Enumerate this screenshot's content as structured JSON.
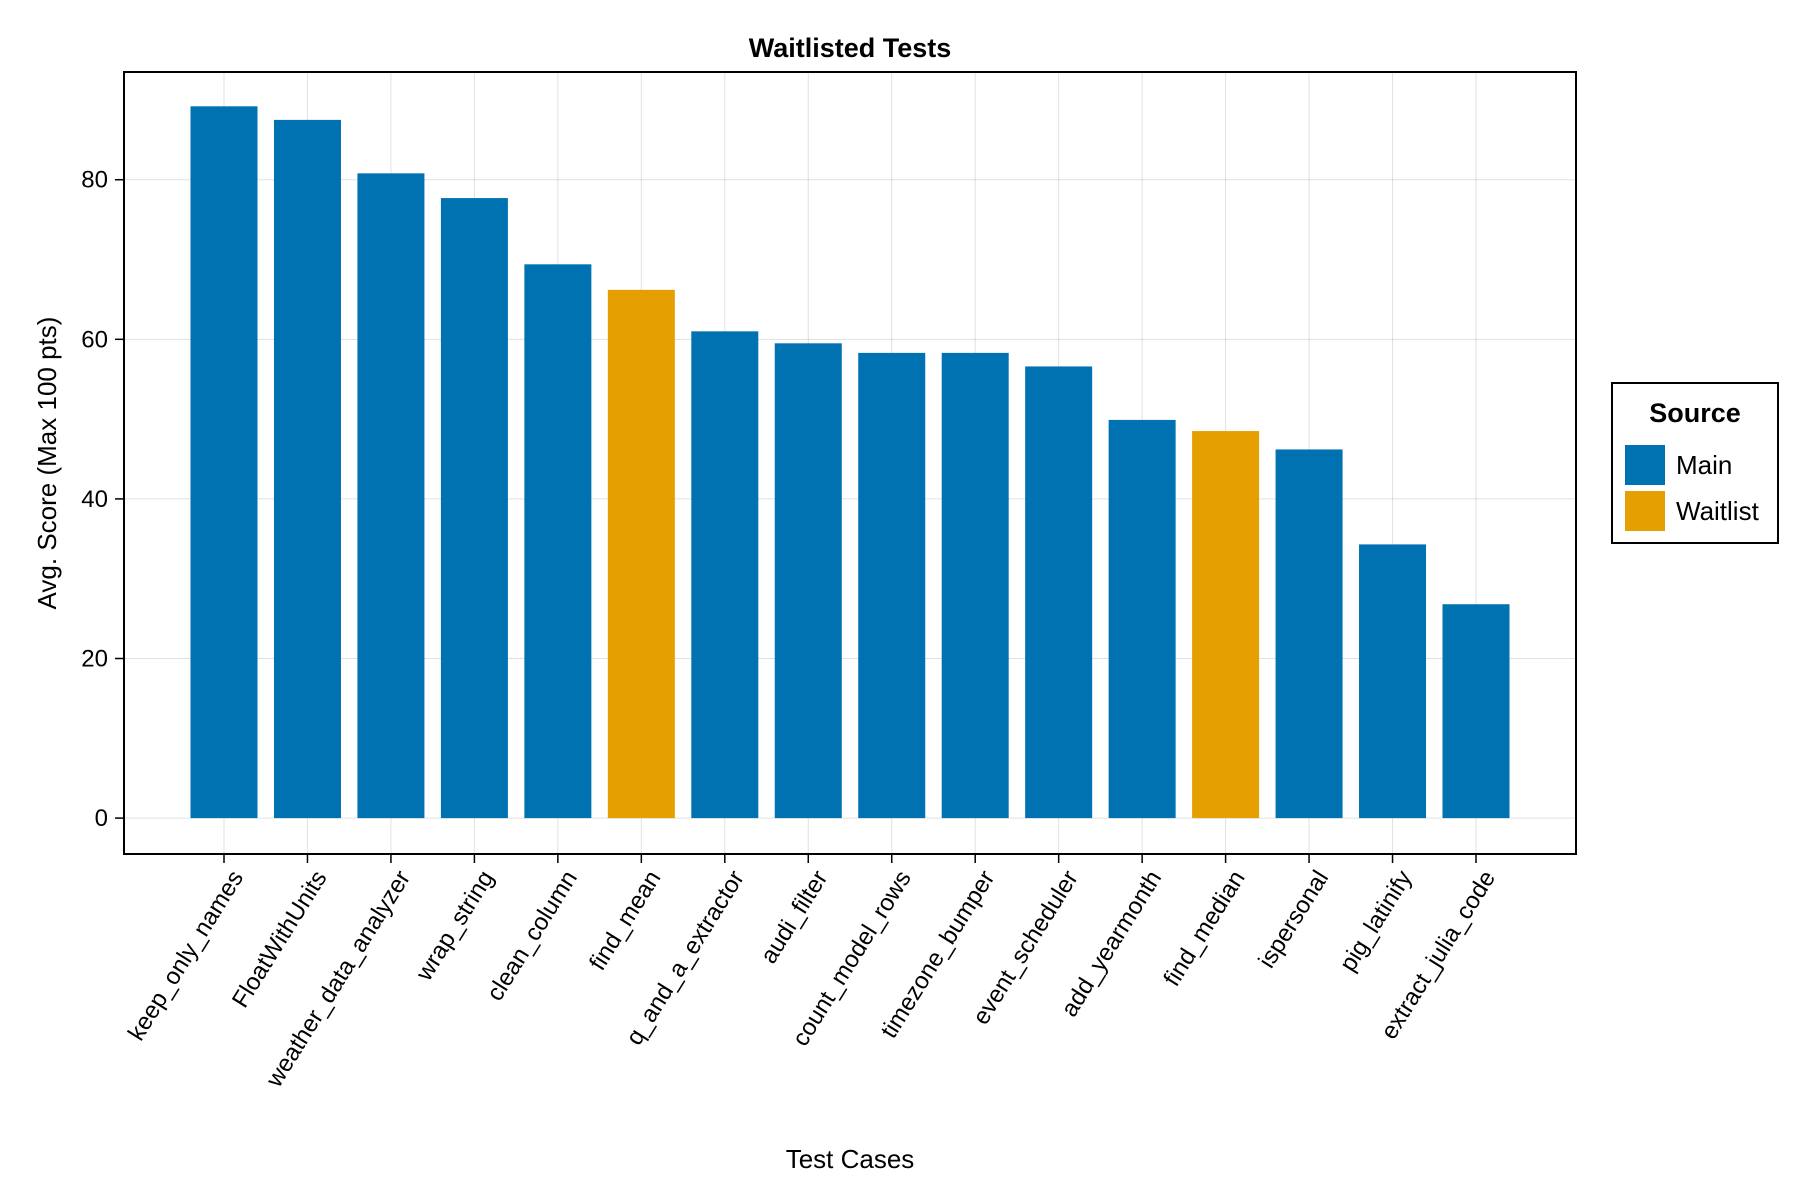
{
  "chart_data": {
    "type": "bar",
    "title": "Waitlisted Tests",
    "xlabel": "Test Cases",
    "ylabel": "Avg. Score (Max 100 pts)",
    "ylim": [
      -4.5,
      93.5
    ],
    "yticks": [
      0,
      20,
      40,
      60,
      80
    ],
    "grid": true,
    "legend_position": "right",
    "legend_title": "Source",
    "categories": [
      "keep_only_names",
      "FloatWithUnits",
      "weather_data_analyzer",
      "wrap_string",
      "clean_column",
      "find_mean",
      "q_and_a_extractor",
      "audi_filter",
      "count_model_rows",
      "timezone_bumper",
      "event_scheduler",
      "add_yearmonth",
      "find_median",
      "ispersonal",
      "pig_latinify",
      "extract_julia_code"
    ],
    "values": [
      89.2,
      87.5,
      80.8,
      77.7,
      69.4,
      66.2,
      61.0,
      59.5,
      58.3,
      58.3,
      56.6,
      49.9,
      48.5,
      46.2,
      34.3,
      26.8
    ],
    "source": [
      "Main",
      "Main",
      "Main",
      "Main",
      "Main",
      "Waitlist",
      "Main",
      "Main",
      "Main",
      "Main",
      "Main",
      "Main",
      "Waitlist",
      "Main",
      "Main",
      "Main"
    ],
    "legend": [
      {
        "name": "Main",
        "color": "#0072b2"
      },
      {
        "name": "Waitlist",
        "color": "#e69f00"
      }
    ]
  }
}
